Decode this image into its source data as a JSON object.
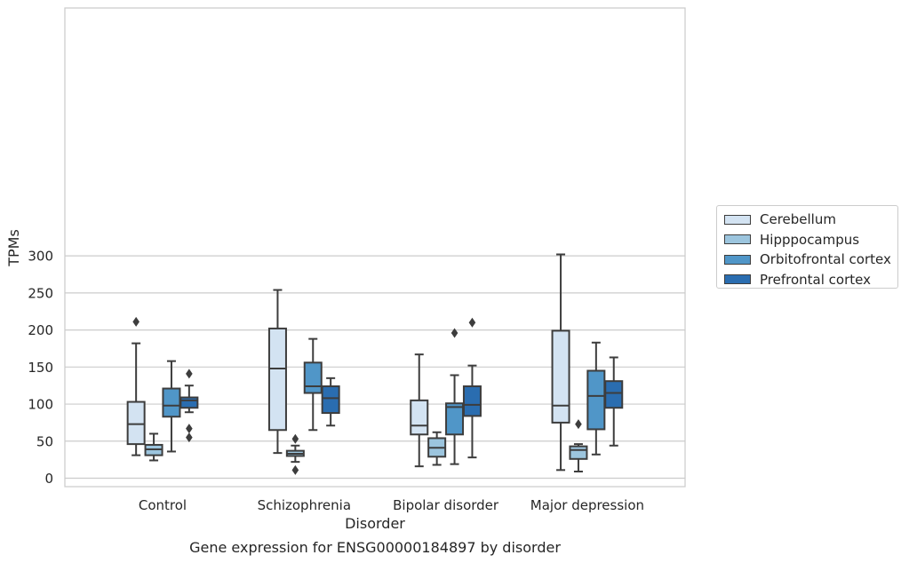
{
  "caption": "Gene expression for ENSG00000184897 by disorder",
  "chart_data": {
    "type": "box",
    "title": "",
    "xlabel": "Disorder",
    "ylabel": "TPMs",
    "ylim": [
      -5,
      317
    ],
    "yticks": [
      0,
      50,
      100,
      150,
      200,
      250,
      300
    ],
    "grid": "horizontal",
    "legend_position": "right",
    "categories": [
      "Control",
      "Schizophrenia",
      "Bipolar disorder",
      "Major depression"
    ],
    "series": [
      {
        "name": "Cerebellum",
        "color": "#d3e3f2",
        "boxes": [
          {
            "whisker_low": 31,
            "q1": 46,
            "median": 73,
            "q3": 103,
            "whisker_high": 182,
            "outliers": [
              211
            ]
          },
          {
            "whisker_low": 34,
            "q1": 65,
            "median": 148,
            "q3": 202,
            "whisker_high": 254,
            "outliers": []
          },
          {
            "whisker_low": 16,
            "q1": 59,
            "median": 71,
            "q3": 105,
            "whisker_high": 167,
            "outliers": []
          },
          {
            "whisker_low": 11,
            "q1": 75,
            "median": 98,
            "q3": 199,
            "whisker_high": 302,
            "outliers": []
          }
        ]
      },
      {
        "name": "Hipppocampus",
        "color": "#9cc5de",
        "boxes": [
          {
            "whisker_low": 24,
            "q1": 31,
            "median": 39,
            "q3": 45,
            "whisker_high": 60,
            "outliers": []
          },
          {
            "whisker_low": 22,
            "q1": 30,
            "median": 33,
            "q3": 37,
            "whisker_high": 44,
            "outliers": [
              53,
              11
            ]
          },
          {
            "whisker_low": 18,
            "q1": 29,
            "median": 41,
            "q3": 54,
            "whisker_high": 62,
            "outliers": []
          },
          {
            "whisker_low": 9,
            "q1": 26,
            "median": 38,
            "q3": 43,
            "whisker_high": 46,
            "outliers": [
              73
            ]
          }
        ]
      },
      {
        "name": "Orbitofrontal cortex",
        "color": "#5096c8",
        "boxes": [
          {
            "whisker_low": 36,
            "q1": 83,
            "median": 98,
            "q3": 121,
            "whisker_high": 158,
            "outliers": []
          },
          {
            "whisker_low": 65,
            "q1": 115,
            "median": 124,
            "q3": 156,
            "whisker_high": 188,
            "outliers": []
          },
          {
            "whisker_low": 19,
            "q1": 59,
            "median": 96,
            "q3": 101,
            "whisker_high": 139,
            "outliers": [
              196
            ]
          },
          {
            "whisker_low": 32,
            "q1": 66,
            "median": 111,
            "q3": 145,
            "whisker_high": 183,
            "outliers": []
          }
        ]
      },
      {
        "name": "Prefrontal cortex",
        "color": "#2a6db0",
        "boxes": [
          {
            "whisker_low": 89,
            "q1": 95,
            "median": 105,
            "q3": 109,
            "whisker_high": 125,
            "outliers": [
              141,
              67,
              55
            ]
          },
          {
            "whisker_low": 71,
            "q1": 88,
            "median": 108,
            "q3": 124,
            "whisker_high": 135,
            "outliers": []
          },
          {
            "whisker_low": 28,
            "q1": 84,
            "median": 99,
            "q3": 124,
            "whisker_high": 152,
            "outliers": [
              210
            ]
          },
          {
            "whisker_low": 44,
            "q1": 95,
            "median": 115,
            "q3": 131,
            "whisker_high": 163,
            "outliers": []
          }
        ]
      }
    ]
  }
}
